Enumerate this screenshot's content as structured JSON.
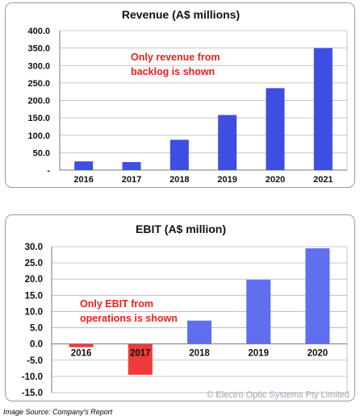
{
  "chart_data": [
    {
      "type": "bar",
      "title": "Revenue (A$ millions)",
      "categories": [
        "2016",
        "2017",
        "2018",
        "2019",
        "2020",
        "2021"
      ],
      "values": [
        25,
        23,
        87,
        158,
        235,
        350
      ],
      "ylim": [
        0,
        400
      ],
      "yticks": [
        "400.0",
        "350.0",
        "300.0",
        "250.0",
        "200.0",
        "150.0",
        "100.0",
        "50.0",
        "-"
      ],
      "grid": true,
      "annotation": [
        "Only revenue from",
        "backlog is shown"
      ],
      "bar_color": "#3d4ee0",
      "annotation_color": "#e8211c"
    },
    {
      "type": "bar",
      "title": "EBIT (A$ million)",
      "categories": [
        "2016",
        "2017",
        "2018",
        "2019",
        "2020"
      ],
      "values": [
        -1,
        -9.5,
        7.2,
        19.8,
        29.5
      ],
      "ylim": [
        -15,
        30
      ],
      "yticks": [
        "30.0",
        "25.0",
        "20.0",
        "15.0",
        "10.0",
        "5.0",
        "0.0",
        "-5.0",
        "-10.0",
        "-15.0"
      ],
      "grid": true,
      "annotation": [
        "Only EBIT from",
        "operations is shown"
      ],
      "watermark": "© Electro Optic Systems Pty Limited",
      "positive_color": "#5f6ff0",
      "negative_color": "#f03a3a",
      "annotation_color": "#e8211c"
    }
  ],
  "caption": "Image Source: Company's Report"
}
